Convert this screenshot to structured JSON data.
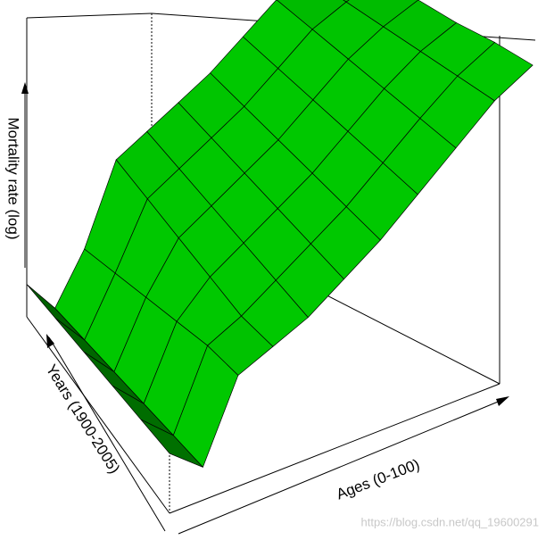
{
  "chart_data": {
    "type": "surface",
    "x_label": "Ages (0-100)",
    "y_label": "Years (1900-2005)",
    "z_label": "Mortality rate (log)",
    "watermark": "https://blog.csdn.net/qq_19600291",
    "color": "#00c000",
    "zlim": [
      -0.1,
      1
    ],
    "z": [
      [
        0.12,
        0.02,
        0.3,
        0.35,
        0.4,
        0.48,
        0.56,
        0.66,
        0.76,
        0.86,
        0.92
      ],
      [
        0.1,
        0.0,
        0.28,
        0.34,
        0.42,
        0.5,
        0.58,
        0.68,
        0.78,
        0.87,
        0.93
      ],
      [
        0.08,
        -0.02,
        0.24,
        0.36,
        0.44,
        0.52,
        0.6,
        0.7,
        0.8,
        0.88,
        0.93
      ],
      [
        0.06,
        -0.04,
        0.2,
        0.38,
        0.46,
        0.54,
        0.62,
        0.72,
        0.82,
        0.89,
        0.94
      ],
      [
        0.04,
        -0.06,
        0.16,
        0.4,
        0.48,
        0.56,
        0.64,
        0.74,
        0.84,
        0.9,
        0.95
      ],
      [
        0.02,
        -0.08,
        0.12,
        0.42,
        0.5,
        0.58,
        0.66,
        0.76,
        0.86,
        0.91,
        0.95
      ]
    ]
  }
}
